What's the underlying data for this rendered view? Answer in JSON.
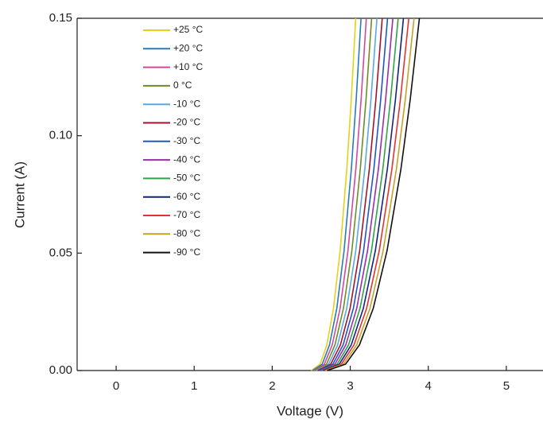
{
  "chart_data": {
    "type": "line",
    "x_label": "Voltage (V)",
    "y_label": "Current (A)",
    "xlim": [
      -0.5,
      5.47
    ],
    "ylim": [
      0,
      0.15
    ],
    "xticks": [
      0,
      1,
      2,
      3,
      4,
      5
    ],
    "yticks": [
      {
        "value": 0,
        "label": "0.00"
      },
      {
        "value": 0.05,
        "label": "0.05"
      },
      {
        "value": 0.1,
        "label": "0.10"
      },
      {
        "value": 0.15,
        "label": "0.15"
      }
    ],
    "legend": "upper-left",
    "series": [
      {
        "name": "+25 °C",
        "color": "#e3d21a",
        "x": [
          2.5,
          2.614,
          2.7,
          2.785,
          2.871,
          2.956,
          3.013,
          3.07
        ],
        "values": [
          0,
          0.0027,
          0.0109,
          0.0265,
          0.0511,
          0.0859,
          0.1153,
          0.15
        ]
      },
      {
        "name": "+20 °C",
        "color": "#2a7ab8",
        "x": [
          2.517,
          2.641,
          2.734,
          2.828,
          2.921,
          3.014,
          3.076,
          3.138
        ],
        "values": [
          0,
          0.0027,
          0.0109,
          0.0265,
          0.0511,
          0.0859,
          0.1153,
          0.15
        ]
      },
      {
        "name": "+10 °C",
        "color": "#d2489e",
        "x": [
          2.534,
          2.668,
          2.769,
          2.87,
          2.971,
          3.072,
          3.139,
          3.206
        ],
        "values": [
          0,
          0.0027,
          0.0109,
          0.0265,
          0.0511,
          0.0859,
          0.1153,
          0.15
        ]
      },
      {
        "name": "0 °C",
        "color": "#6b8e23",
        "x": [
          2.551,
          2.696,
          2.804,
          2.913,
          3.021,
          3.129,
          3.202,
          3.274
        ],
        "values": [
          0,
          0.0027,
          0.0109,
          0.0265,
          0.0511,
          0.0859,
          0.1153,
          0.15
        ]
      },
      {
        "name": "-10 °C",
        "color": "#58a8e0",
        "x": [
          2.568,
          2.723,
          2.839,
          2.955,
          3.071,
          3.187,
          3.265,
          3.342
        ],
        "values": [
          0,
          0.0027,
          0.0109,
          0.0265,
          0.0511,
          0.0859,
          0.1153,
          0.15
        ]
      },
      {
        "name": "-20 °C",
        "color": "#a0142e",
        "x": [
          2.585,
          2.75,
          2.874,
          2.998,
          3.121,
          3.245,
          3.328,
          3.41
        ],
        "values": [
          0,
          0.0027,
          0.0109,
          0.0265,
          0.0511,
          0.0859,
          0.1153,
          0.15
        ]
      },
      {
        "name": "-30 °C",
        "color": "#1f56c4",
        "x": [
          2.602,
          2.777,
          2.909,
          3.04,
          3.171,
          3.303,
          3.39,
          3.478
        ],
        "values": [
          0,
          0.0027,
          0.0109,
          0.0265,
          0.0511,
          0.0859,
          0.1153,
          0.15
        ]
      },
      {
        "name": "-40 °C",
        "color": "#9a2ea6",
        "x": [
          2.619,
          2.804,
          2.943,
          3.083,
          3.222,
          3.361,
          3.453,
          3.546
        ],
        "values": [
          0,
          0.0027,
          0.0109,
          0.0265,
          0.0511,
          0.0859,
          0.1153,
          0.15
        ]
      },
      {
        "name": "-50 °C",
        "color": "#2fa346",
        "x": [
          2.636,
          2.832,
          2.978,
          3.125,
          3.272,
          3.418,
          3.516,
          3.614
        ],
        "values": [
          0,
          0.0027,
          0.0109,
          0.0265,
          0.0511,
          0.0859,
          0.1153,
          0.15
        ]
      },
      {
        "name": "-60 °C",
        "color": "#14237e",
        "x": [
          2.653,
          2.859,
          3.013,
          3.168,
          3.322,
          3.476,
          3.579,
          3.682
        ],
        "values": [
          0,
          0.0027,
          0.0109,
          0.0265,
          0.0511,
          0.0859,
          0.1153,
          0.15
        ]
      },
      {
        "name": "-70 °C",
        "color": "#e2342e",
        "x": [
          2.67,
          2.886,
          3.048,
          3.21,
          3.372,
          3.534,
          3.642,
          3.75
        ],
        "values": [
          0,
          0.0027,
          0.0109,
          0.0265,
          0.0511,
          0.0859,
          0.1153,
          0.15
        ]
      },
      {
        "name": "-80 °C",
        "color": "#c4a22a",
        "x": [
          2.687,
          2.913,
          3.083,
          3.253,
          3.422,
          3.592,
          3.705,
          3.818
        ],
        "values": [
          0,
          0.0027,
          0.0109,
          0.0265,
          0.0511,
          0.0859,
          0.1153,
          0.15
        ]
      },
      {
        "name": "-90 °C",
        "color": "#111111",
        "x": [
          2.704,
          2.94,
          3.118,
          3.295,
          3.472,
          3.65,
          3.768,
          3.886
        ],
        "values": [
          0,
          0.0027,
          0.0109,
          0.0265,
          0.0511,
          0.0859,
          0.1153,
          0.15
        ]
      }
    ]
  }
}
